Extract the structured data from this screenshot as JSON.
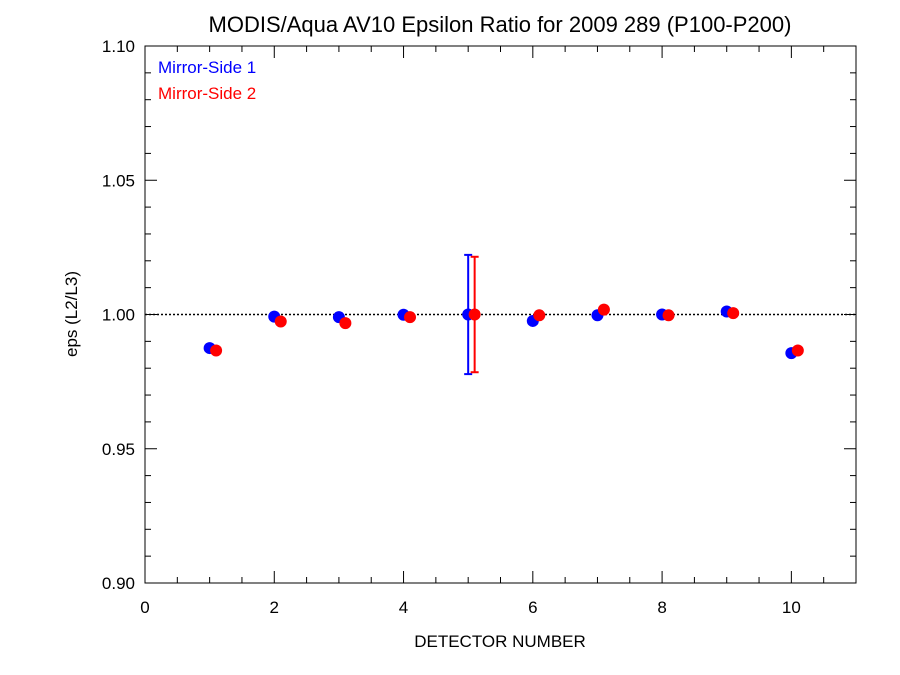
{
  "chart_data": {
    "type": "scatter",
    "title": "MODIS/Aqua AV10 Epsilon Ratio for 2009 289 (P100-P200)",
    "xlabel": "DETECTOR NUMBER",
    "ylabel": "eps (L2/L3)",
    "xlim": [
      0,
      11
    ],
    "ylim": [
      0.9,
      1.1
    ],
    "x_ticks": [
      "0",
      "2",
      "4",
      "6",
      "8",
      "10"
    ],
    "y_ticks": [
      "0.90",
      "0.95",
      "1.00",
      "1.05",
      "1.10"
    ],
    "reference_line": 1.0,
    "legend_position": "top-left",
    "series": [
      {
        "name": "Mirror-Side 1",
        "color": "#0000ff",
        "x": [
          1,
          2,
          3,
          4,
          5,
          6,
          7,
          8,
          9,
          10
        ],
        "y": [
          0.9875,
          0.9992,
          0.999,
          0.9999,
          1.0,
          0.9976,
          0.9997,
          1.0,
          1.0011,
          0.9856
        ],
        "error_bar": {
          "x": 5,
          "y_low": 0.9778,
          "y_high": 1.0222
        }
      },
      {
        "name": "Mirror-Side 2",
        "color": "#ff0000",
        "x": [
          1.1,
          2.1,
          3.1,
          4.1,
          5.1,
          6.1,
          7.1,
          8.1,
          9.1,
          10.1
        ],
        "y": [
          0.9866,
          0.9974,
          0.9968,
          0.999,
          1.0,
          0.9997,
          1.0018,
          0.9997,
          1.0005,
          0.9866
        ],
        "error_bar": {
          "x": 5.1,
          "y_low": 0.9785,
          "y_high": 1.0215
        }
      }
    ]
  }
}
